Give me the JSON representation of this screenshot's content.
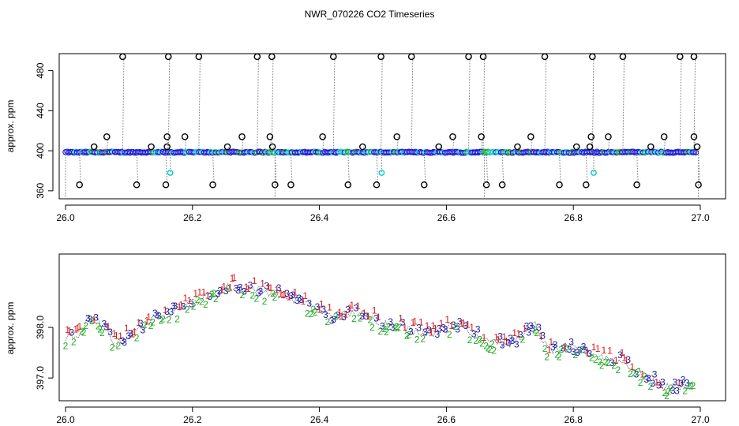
{
  "title": "NWR_070226  CO2 Timeseries",
  "colors": {
    "flask_stroke": "#000000",
    "flask_ref_stroke": "#00cccc",
    "line": "#808080",
    "blue": "#1f1fd6",
    "cyan": "#20d0d0",
    "green": "#22aa22",
    "red": "#d81b1b",
    "navy": "#1a1aa8",
    "axis": "#000000"
  },
  "chart_data": [
    {
      "type": "scatter",
      "title": "",
      "xlabel": "",
      "ylabel": "approx. ppm",
      "xlim": [
        26.0,
        27.0
      ],
      "ylim": [
        352,
        497
      ],
      "xticks": [
        "26.0",
        "26.2",
        "26.4",
        "26.6",
        "26.8",
        "27.0"
      ],
      "xtick_values": [
        26.0,
        26.2,
        26.4,
        26.6,
        26.8,
        27.0
      ],
      "yticks": [
        "360",
        "400",
        "440",
        "480"
      ],
      "ytick_values": [
        360,
        400,
        440,
        480
      ],
      "baseline": 398.5,
      "spikes_high": [
        {
          "x": 26.09,
          "y": 494
        },
        {
          "x": 26.162,
          "y": 494
        },
        {
          "x": 26.21,
          "y": 494
        },
        {
          "x": 26.302,
          "y": 494
        },
        {
          "x": 26.325,
          "y": 494
        },
        {
          "x": 26.422,
          "y": 494
        },
        {
          "x": 26.497,
          "y": 494
        },
        {
          "x": 26.545,
          "y": 494
        },
        {
          "x": 26.635,
          "y": 494
        },
        {
          "x": 26.658,
          "y": 494
        },
        {
          "x": 26.755,
          "y": 494
        },
        {
          "x": 26.83,
          "y": 494
        },
        {
          "x": 26.878,
          "y": 494
        },
        {
          "x": 26.968,
          "y": 494
        },
        {
          "x": 26.99,
          "y": 494
        }
      ],
      "spikes_mid": [
        {
          "x": 26.065,
          "y": 414
        },
        {
          "x": 26.16,
          "y": 414
        },
        {
          "x": 26.188,
          "y": 414
        },
        {
          "x": 26.278,
          "y": 414
        },
        {
          "x": 26.322,
          "y": 414
        },
        {
          "x": 26.405,
          "y": 414
        },
        {
          "x": 26.522,
          "y": 414
        },
        {
          "x": 26.61,
          "y": 414
        },
        {
          "x": 26.655,
          "y": 414
        },
        {
          "x": 26.733,
          "y": 414
        },
        {
          "x": 26.828,
          "y": 414
        },
        {
          "x": 26.855,
          "y": 414
        },
        {
          "x": 26.943,
          "y": 414
        },
        {
          "x": 26.99,
          "y": 414
        }
      ],
      "spikes_low_mid": [
        {
          "x": 26.045,
          "y": 404
        },
        {
          "x": 26.135,
          "y": 404
        },
        {
          "x": 26.16,
          "y": 404
        },
        {
          "x": 26.255,
          "y": 404
        },
        {
          "x": 26.326,
          "y": 404
        },
        {
          "x": 26.468,
          "y": 404
        },
        {
          "x": 26.588,
          "y": 404
        },
        {
          "x": 26.712,
          "y": 404
        },
        {
          "x": 26.805,
          "y": 404
        },
        {
          "x": 26.826,
          "y": 404
        },
        {
          "x": 26.922,
          "y": 404
        },
        {
          "x": 26.995,
          "y": 404
        }
      ],
      "spikes_low": [
        {
          "x": 26.022,
          "y": 366
        },
        {
          "x": 26.112,
          "y": 366
        },
        {
          "x": 26.158,
          "y": 366
        },
        {
          "x": 26.232,
          "y": 366
        },
        {
          "x": 26.33,
          "y": 366
        },
        {
          "x": 26.355,
          "y": 366
        },
        {
          "x": 26.445,
          "y": 366
        },
        {
          "x": 26.49,
          "y": 366
        },
        {
          "x": 26.565,
          "y": 366
        },
        {
          "x": 26.663,
          "y": 366
        },
        {
          "x": 26.688,
          "y": 366
        },
        {
          "x": 26.778,
          "y": 366
        },
        {
          "x": 26.82,
          "y": 366
        },
        {
          "x": 26.9,
          "y": 366
        },
        {
          "x": 26.997,
          "y": 366
        }
      ],
      "reference_points": [
        {
          "x": 26.165,
          "y": 378
        },
        {
          "x": 26.498,
          "y": 378
        },
        {
          "x": 26.832,
          "y": 378
        }
      ]
    },
    {
      "type": "scatter",
      "title": "",
      "xlabel": "",
      "ylabel": "approx. ppm",
      "xlim": [
        26.0,
        27.0
      ],
      "ylim": [
        396.55,
        399.45
      ],
      "xticks": [
        "26.0",
        "26.2",
        "26.4",
        "26.6",
        "26.8",
        "27.0"
      ],
      "xtick_values": [
        26.0,
        26.2,
        26.4,
        26.6,
        26.8,
        27.0
      ],
      "yticks": [
        "397.0",
        "398.0"
      ],
      "ytick_values": [
        397.0,
        398.0
      ],
      "marker_labels": [
        "1",
        "2",
        "3"
      ],
      "trend": [
        {
          "x": 26.0,
          "y": 397.75
        },
        {
          "x": 26.02,
          "y": 397.85
        },
        {
          "x": 26.04,
          "y": 398.2
        },
        {
          "x": 26.06,
          "y": 398.0
        },
        {
          "x": 26.08,
          "y": 397.65
        },
        {
          "x": 26.1,
          "y": 397.85
        },
        {
          "x": 26.14,
          "y": 398.15
        },
        {
          "x": 26.18,
          "y": 398.4
        },
        {
          "x": 26.22,
          "y": 398.6
        },
        {
          "x": 26.26,
          "y": 398.8
        },
        {
          "x": 26.3,
          "y": 398.75
        },
        {
          "x": 26.34,
          "y": 398.65
        },
        {
          "x": 26.38,
          "y": 398.45
        },
        {
          "x": 26.42,
          "y": 398.2
        },
        {
          "x": 26.46,
          "y": 398.3
        },
        {
          "x": 26.5,
          "y": 398.1
        },
        {
          "x": 26.54,
          "y": 397.95
        },
        {
          "x": 26.58,
          "y": 397.9
        },
        {
          "x": 26.62,
          "y": 398.05
        },
        {
          "x": 26.66,
          "y": 397.8
        },
        {
          "x": 26.7,
          "y": 397.65
        },
        {
          "x": 26.74,
          "y": 398.05
        },
        {
          "x": 26.76,
          "y": 397.55
        },
        {
          "x": 26.8,
          "y": 397.6
        },
        {
          "x": 26.84,
          "y": 397.45
        },
        {
          "x": 26.88,
          "y": 397.3
        },
        {
          "x": 26.92,
          "y": 397.0
        },
        {
          "x": 26.95,
          "y": 396.8
        },
        {
          "x": 26.99,
          "y": 396.9
        }
      ]
    }
  ]
}
